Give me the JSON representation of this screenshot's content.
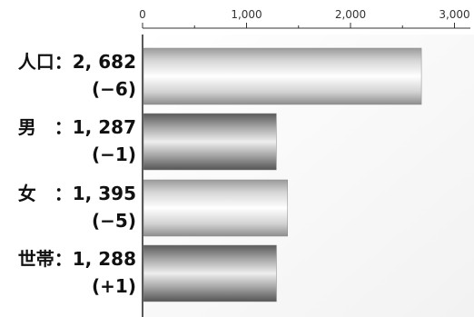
{
  "chart_data": {
    "type": "bar",
    "orientation": "horizontal",
    "categories": [
      "人口",
      "男",
      "女",
      "世帯"
    ],
    "values": [
      2682,
      1287,
      1395,
      1288
    ],
    "changes": [
      "(−6)",
      "(−1)",
      "(−5)",
      "(+1)"
    ],
    "category_labels": [
      "人口：2, 682",
      "男　：1, 287",
      "女　：1, 395",
      "世帯：1, 288"
    ],
    "xlim": [
      0,
      3200
    ],
    "x_ticks": [
      0,
      1000,
      2000,
      3000
    ],
    "x_tick_labels": [
      "0",
      "1,000",
      "2,000",
      "3,000"
    ],
    "grid": false,
    "title": "",
    "xlabel": "",
    "ylabel": ""
  }
}
